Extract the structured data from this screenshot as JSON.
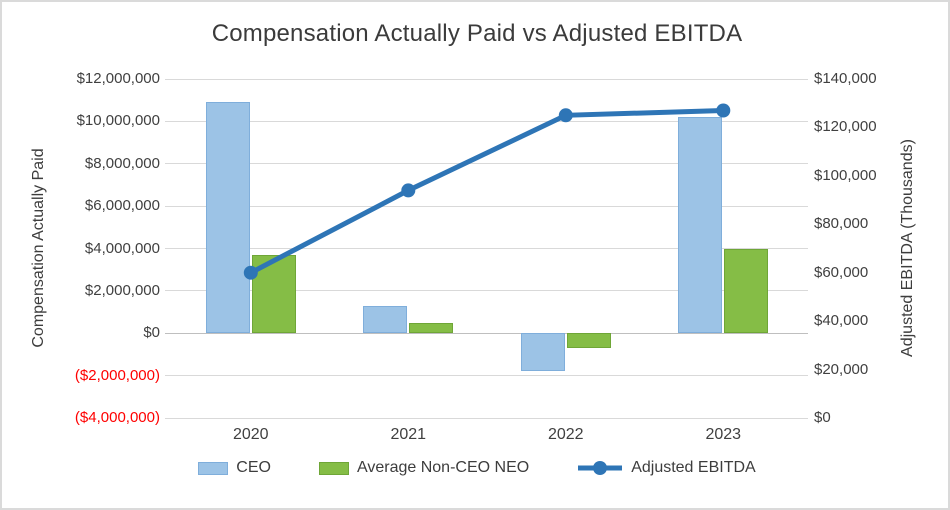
{
  "chart_data": {
    "type": "combo-bar-line",
    "title": "Compensation Actually Paid vs Adjusted EBITDA",
    "categories": [
      "2020",
      "2021",
      "2022",
      "2023"
    ],
    "series": [
      {
        "name": "CEO",
        "type": "bar",
        "axis": "left",
        "color": "#9CC3E6",
        "border_color": "#7FAEDB",
        "values": [
          10900000,
          1300000,
          -1800000,
          10200000
        ]
      },
      {
        "name": "Average Non-CEO NEO",
        "type": "bar",
        "axis": "left",
        "color": "#85BD46",
        "border_color": "#6FA637",
        "values": [
          3700000,
          500000,
          -700000,
          4000000
        ]
      },
      {
        "name": "Adjusted EBITDA",
        "type": "line",
        "axis": "right",
        "color": "#2E75B6",
        "values": [
          60000,
          94000,
          125000,
          127000
        ]
      }
    ],
    "left_axis": {
      "title": "Compensation Actually Paid",
      "min": -4000000,
      "max": 12000000,
      "step": 2000000,
      "ticks": [
        "$12,000,000",
        "$10,000,000",
        "$8,000,000",
        "$6,000,000",
        "$4,000,000",
        "$2,000,000",
        "$0",
        "($2,000,000)",
        "($4,000,000)"
      ],
      "tick_color": "#404040",
      "negative_tick_color": "#FF0000"
    },
    "right_axis": {
      "title": "Adjusted EBITDA (Thousands)",
      "min": 0,
      "max": 140000,
      "step": 20000,
      "ticks": [
        "$140,000",
        "$120,000",
        "$100,000",
        "$80,000",
        "$60,000",
        "$40,000",
        "$20,000",
        "$0"
      ],
      "tick_color": "#404040"
    },
    "legend_position": "bottom",
    "grid": true,
    "gridline_color": "#D9D9D9"
  }
}
